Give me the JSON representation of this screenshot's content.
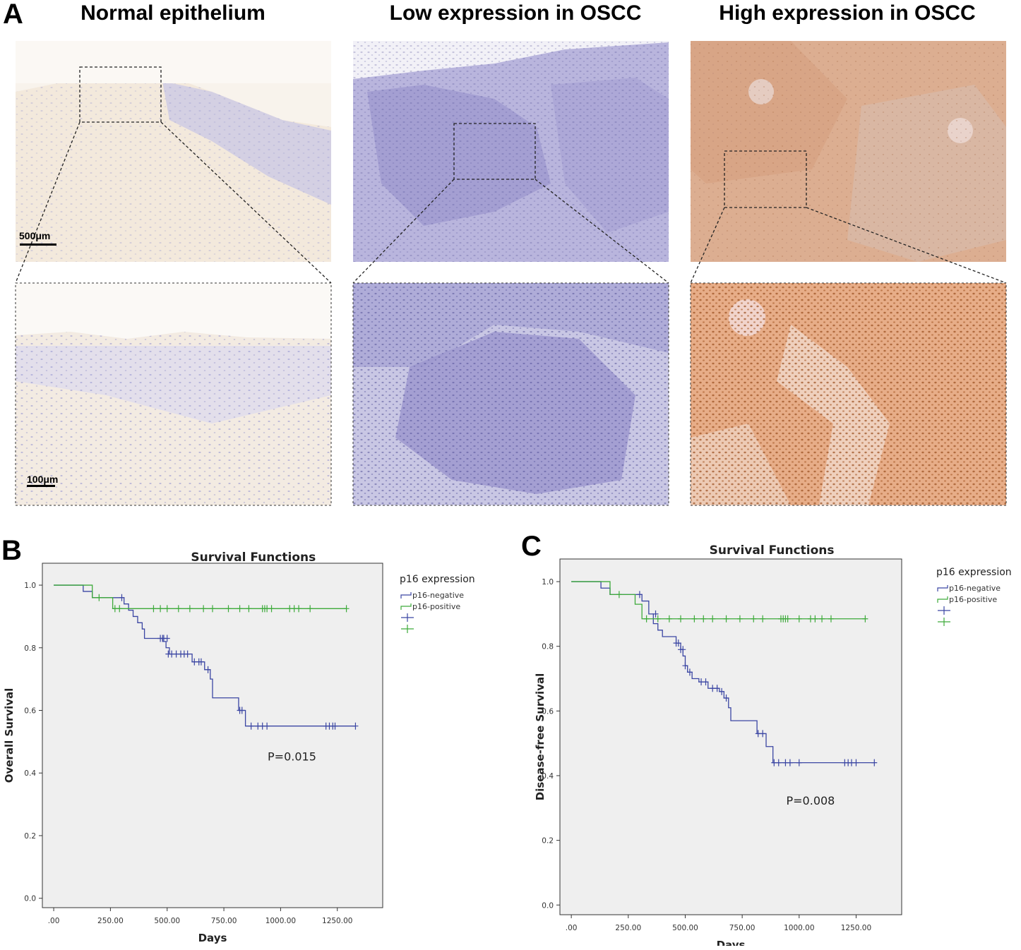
{
  "figure": {
    "panel_a": {
      "letter": "A",
      "columns": [
        {
          "title": "Normal epithelium",
          "stain": "normal"
        },
        {
          "title": "Low expression in OSCC",
          "stain": "low"
        },
        {
          "title": "High expression in OSCC",
          "stain": "high"
        }
      ],
      "scale_top": "500μm",
      "scale_bottom": "100μm"
    },
    "panel_b": {
      "letter": "B"
    },
    "panel_c": {
      "letter": "C"
    }
  },
  "colors": {
    "negative": "#3b46a3",
    "positive": "#3daa3a",
    "plot_bg": "#efefef",
    "stain_normal": "#f5efe6",
    "stain_low": "#a9a6d6",
    "stain_high": "#d9a17e"
  },
  "chart_data": [
    {
      "type": "line",
      "panel": "B",
      "title": "Survival Functions",
      "xlabel": "Days",
      "ylabel": "Overall Survival",
      "xlim": [
        -50,
        1450
      ],
      "ylim": [
        -0.03,
        1.07
      ],
      "xticks": [
        0,
        250,
        500,
        750,
        1000,
        1250
      ],
      "xtick_labels": [
        ".00",
        "250.00",
        "500.00",
        "750.00",
        "1000.00",
        "1250.00"
      ],
      "yticks": [
        0,
        0.2,
        0.4,
        0.6,
        0.8,
        1.0
      ],
      "ytick_labels": [
        "0.0",
        "0.2",
        "0.4",
        "0.6",
        "0.8",
        "1.0"
      ],
      "legend_title": "p16 expression",
      "legend_placement": "right, outside plot",
      "annotation": "P=0.015",
      "annotation_pos": [
        1050,
        0.44
      ],
      "series": [
        {
          "name": "p16-negative",
          "color_key": "negative",
          "steps": [
            [
              0,
              1.0
            ],
            [
              130,
              0.98
            ],
            [
              170,
              0.96
            ],
            [
              300,
              0.96
            ],
            [
              310,
              0.94
            ],
            [
              330,
              0.92
            ],
            [
              350,
              0.9
            ],
            [
              370,
              0.88
            ],
            [
              390,
              0.86
            ],
            [
              400,
              0.83
            ],
            [
              460,
              0.83
            ],
            [
              480,
              0.82
            ],
            [
              495,
              0.8
            ],
            [
              510,
              0.78
            ],
            [
              600,
              0.78
            ],
            [
              610,
              0.755
            ],
            [
              660,
              0.755
            ],
            [
              665,
              0.73
            ],
            [
              690,
              0.7
            ],
            [
              700,
              0.64
            ],
            [
              810,
              0.64
            ],
            [
              815,
              0.6
            ],
            [
              840,
              0.6
            ],
            [
              845,
              0.55
            ],
            [
              1330,
              0.55
            ]
          ],
          "censored": [
            [
              300,
              0.96
            ],
            [
              470,
              0.83
            ],
            [
              480,
              0.83
            ],
            [
              485,
              0.83
            ],
            [
              500,
              0.83
            ],
            [
              505,
              0.78
            ],
            [
              520,
              0.78
            ],
            [
              540,
              0.78
            ],
            [
              560,
              0.78
            ],
            [
              575,
              0.78
            ],
            [
              590,
              0.78
            ],
            [
              620,
              0.755
            ],
            [
              640,
              0.755
            ],
            [
              650,
              0.755
            ],
            [
              680,
              0.73
            ],
            [
              820,
              0.6
            ],
            [
              830,
              0.6
            ],
            [
              870,
              0.55
            ],
            [
              900,
              0.55
            ],
            [
              920,
              0.55
            ],
            [
              940,
              0.55
            ],
            [
              1200,
              0.55
            ],
            [
              1215,
              0.55
            ],
            [
              1230,
              0.55
            ],
            [
              1240,
              0.55
            ],
            [
              1330,
              0.55
            ]
          ]
        },
        {
          "name": "p16-positive",
          "color_key": "positive",
          "steps": [
            [
              0,
              1.0
            ],
            [
              170,
              0.96
            ],
            [
              250,
              0.96
            ],
            [
              260,
              0.925
            ],
            [
              1290,
              0.925
            ]
          ],
          "censored": [
            [
              200,
              0.96
            ],
            [
              270,
              0.925
            ],
            [
              290,
              0.925
            ],
            [
              440,
              0.925
            ],
            [
              470,
              0.925
            ],
            [
              500,
              0.925
            ],
            [
              550,
              0.925
            ],
            [
              600,
              0.925
            ],
            [
              660,
              0.925
            ],
            [
              700,
              0.925
            ],
            [
              770,
              0.925
            ],
            [
              820,
              0.925
            ],
            [
              860,
              0.925
            ],
            [
              920,
              0.925
            ],
            [
              930,
              0.925
            ],
            [
              940,
              0.925
            ],
            [
              960,
              0.925
            ],
            [
              1040,
              0.925
            ],
            [
              1060,
              0.925
            ],
            [
              1080,
              0.925
            ],
            [
              1130,
              0.925
            ],
            [
              1290,
              0.925
            ]
          ]
        }
      ]
    },
    {
      "type": "line",
      "panel": "C",
      "title": "Survival Functions",
      "xlabel": "Days",
      "ylabel": "Disease-free Survival",
      "xlim": [
        -50,
        1450
      ],
      "ylim": [
        -0.03,
        1.07
      ],
      "xticks": [
        0,
        250,
        500,
        750,
        1000,
        1250
      ],
      "xtick_labels": [
        ".00",
        "250.00",
        "500.00",
        "750.00",
        "1000.00",
        "1250.00"
      ],
      "yticks": [
        0,
        0.2,
        0.4,
        0.6,
        0.8,
        1.0
      ],
      "ytick_labels": [
        "0.0",
        "0.2",
        "0.4",
        "0.6",
        "0.8",
        "1.0"
      ],
      "legend_title": "p16 expression",
      "legend_placement": "right, outside plot",
      "annotation": "P=0.008",
      "annotation_pos": [
        1050,
        0.31
      ],
      "series": [
        {
          "name": "p16-negative",
          "color_key": "negative",
          "steps": [
            [
              0,
              1.0
            ],
            [
              130,
              0.98
            ],
            [
              170,
              0.96
            ],
            [
              300,
              0.96
            ],
            [
              310,
              0.94
            ],
            [
              340,
              0.9
            ],
            [
              360,
              0.87
            ],
            [
              380,
              0.85
            ],
            [
              400,
              0.83
            ],
            [
              440,
              0.83
            ],
            [
              460,
              0.81
            ],
            [
              480,
              0.79
            ],
            [
              490,
              0.77
            ],
            [
              500,
              0.74
            ],
            [
              510,
              0.72
            ],
            [
              530,
              0.7
            ],
            [
              560,
              0.69
            ],
            [
              600,
              0.67
            ],
            [
              650,
              0.66
            ],
            [
              670,
              0.64
            ],
            [
              690,
              0.61
            ],
            [
              700,
              0.57
            ],
            [
              810,
              0.57
            ],
            [
              815,
              0.53
            ],
            [
              850,
              0.53
            ],
            [
              855,
              0.49
            ],
            [
              880,
              0.49
            ],
            [
              885,
              0.44
            ],
            [
              1330,
              0.44
            ]
          ],
          "censored": [
            [
              300,
              0.96
            ],
            [
              370,
              0.9
            ],
            [
              460,
              0.81
            ],
            [
              470,
              0.81
            ],
            [
              480,
              0.79
            ],
            [
              490,
              0.79
            ],
            [
              500,
              0.74
            ],
            [
              520,
              0.72
            ],
            [
              570,
              0.69
            ],
            [
              590,
              0.69
            ],
            [
              620,
              0.67
            ],
            [
              640,
              0.67
            ],
            [
              660,
              0.66
            ],
            [
              680,
              0.64
            ],
            [
              820,
              0.53
            ],
            [
              840,
              0.53
            ],
            [
              890,
              0.44
            ],
            [
              910,
              0.44
            ],
            [
              940,
              0.44
            ],
            [
              960,
              0.44
            ],
            [
              1000,
              0.44
            ],
            [
              1200,
              0.44
            ],
            [
              1215,
              0.44
            ],
            [
              1230,
              0.44
            ],
            [
              1250,
              0.44
            ],
            [
              1330,
              0.44
            ]
          ]
        },
        {
          "name": "p16-positive",
          "color_key": "positive",
          "steps": [
            [
              0,
              1.0
            ],
            [
              170,
              0.96
            ],
            [
              270,
              0.96
            ],
            [
              280,
              0.93
            ],
            [
              300,
              0.93
            ],
            [
              310,
              0.885
            ],
            [
              1290,
              0.885
            ]
          ],
          "censored": [
            [
              210,
              0.96
            ],
            [
              330,
              0.885
            ],
            [
              380,
              0.885
            ],
            [
              430,
              0.885
            ],
            [
              480,
              0.885
            ],
            [
              540,
              0.885
            ],
            [
              580,
              0.885
            ],
            [
              620,
              0.885
            ],
            [
              680,
              0.885
            ],
            [
              740,
              0.885
            ],
            [
              800,
              0.885
            ],
            [
              840,
              0.885
            ],
            [
              920,
              0.885
            ],
            [
              930,
              0.885
            ],
            [
              940,
              0.885
            ],
            [
              950,
              0.885
            ],
            [
              1000,
              0.885
            ],
            [
              1050,
              0.885
            ],
            [
              1070,
              0.885
            ],
            [
              1100,
              0.885
            ],
            [
              1140,
              0.885
            ],
            [
              1290,
              0.885
            ]
          ]
        }
      ]
    }
  ]
}
